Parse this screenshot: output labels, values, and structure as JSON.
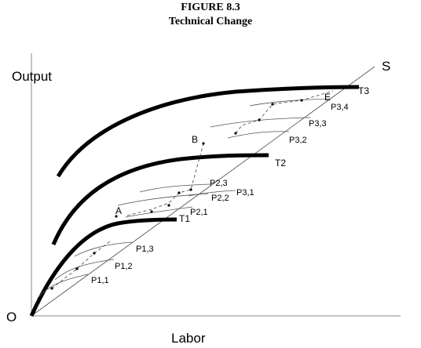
{
  "figure": {
    "number": "FIGURE 8.3",
    "title": "Technical Change"
  },
  "axes": {
    "y_label": "Output",
    "x_label": "Labor",
    "origin_label": "O",
    "ray_label": "S"
  },
  "frontiers": [
    "T1",
    "T2",
    "T3"
  ],
  "points": {
    "A": "A",
    "B": "B",
    "E": "E"
  },
  "short_run_curves": [
    "P1,1",
    "P1,2",
    "P1,3",
    "P2,1",
    "P2,2",
    "P2,3",
    "P3,1",
    "P3,2",
    "P3,3",
    "P3,4"
  ],
  "colors": {
    "ink": "#000000",
    "thin": "#555555"
  }
}
